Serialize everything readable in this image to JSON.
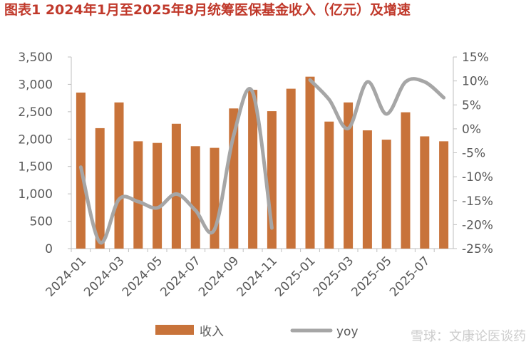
{
  "chart_data": {
    "type": "bar-line",
    "title": "图表1 2024年1月至2025年8月统筹医保基金收入（亿元）及增速",
    "categories": [
      "2024-01",
      null,
      "2024-03",
      null,
      "2024-05",
      null,
      "2024-07",
      null,
      "2024-09",
      null,
      "2024-11",
      null,
      "2025-01",
      null,
      "2025-03",
      null,
      "2025-05",
      null,
      "2025-07",
      null
    ],
    "series": [
      {
        "name": "收入",
        "type": "bar",
        "color": "#c8733a",
        "values": [
          2850,
          2200,
          2670,
          1960,
          1930,
          2280,
          1870,
          1840,
          2560,
          2900,
          2510,
          2920,
          3140,
          2320,
          2670,
          2160,
          1990,
          2490,
          2050,
          1960
        ]
      },
      {
        "name": "yoy",
        "type": "line",
        "axis": "y2",
        "color": "#a6a6a6",
        "values": [
          -8.0,
          -23.7,
          -14.7,
          -15.2,
          -16.5,
          -13.6,
          -17.0,
          -21.0,
          -1.4,
          7.6,
          -20.7,
          null,
          10.2,
          6.1,
          0.1,
          9.8,
          3.1,
          9.8,
          9.8,
          6.5
        ]
      }
    ],
    "ylim": [
      0,
      3500
    ],
    "yticks": [
      0,
      {
        "value": 500,
        "label": "500"
      },
      {
        "value": 1000,
        "label": "1,000"
      },
      {
        "value": 1500,
        "label": "1,500"
      },
      {
        "value": 2000,
        "label": "2,000"
      },
      {
        "value": 2500,
        "label": "2,500"
      },
      {
        "value": 3000,
        "label": "3,000"
      },
      {
        "value": 3500,
        "label": "3,500"
      }
    ],
    "y2lim": [
      -25,
      15
    ],
    "y2ticks": [
      {
        "value": -25,
        "label": "-25%"
      },
      {
        "value": -20,
        "label": "-20%"
      },
      {
        "value": -15,
        "label": "-15%"
      },
      {
        "value": -10,
        "label": "-10%"
      },
      {
        "value": -5,
        "label": "-5%"
      },
      {
        "value": 0,
        "label": "0%"
      },
      {
        "value": 5,
        "label": "5%"
      },
      {
        "value": 10,
        "label": "10%"
      },
      {
        "value": 15,
        "label": "15%"
      }
    ],
    "watermark": "雪球：文康论医谈药"
  }
}
